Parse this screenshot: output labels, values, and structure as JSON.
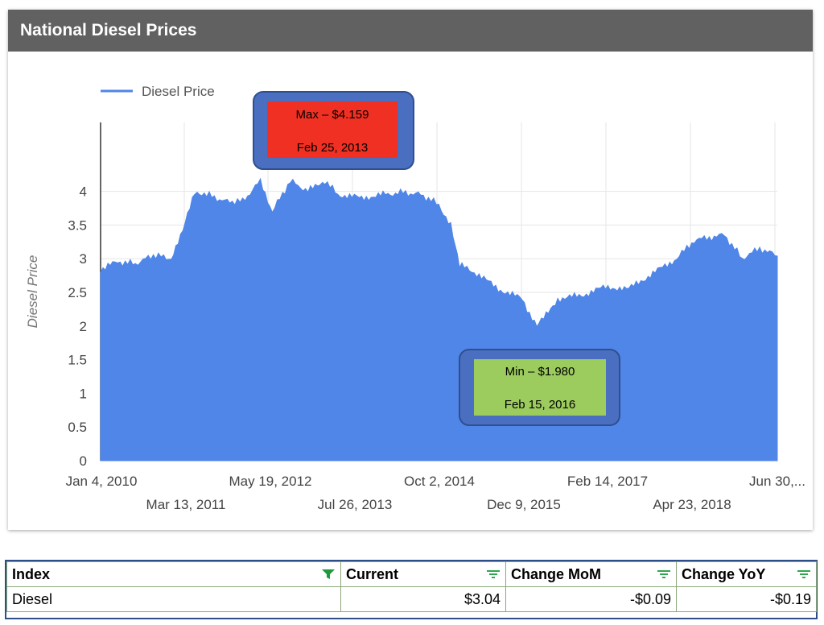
{
  "card": {
    "title": "National Diesel Prices"
  },
  "colors": {
    "series": "#4f86e8",
    "max_box": "#f03022",
    "min_box": "#9ccb5e",
    "callout_outer": "#4a6fc0",
    "header": "#616161"
  },
  "chart_data": {
    "type": "area",
    "title": "",
    "xlabel": "",
    "ylabel": "Diesel Price",
    "ylim": [
      0,
      4.159
    ],
    "yticks": [
      "0",
      "0.5",
      "1",
      "1.5",
      "2",
      "2.5",
      "3",
      "3.5",
      "4"
    ],
    "x_ticks_row1": [
      "Jan 4, 2010",
      "May 19, 2012",
      "Oct 2, 2014",
      "Feb 14, 2017",
      "Jun 30,..."
    ],
    "x_ticks_row2": [
      "Mar 13, 2011",
      "Jul 26, 2013",
      "Dec 9, 2015",
      "Apr 23, 2018"
    ],
    "legend": {
      "position": "top-left",
      "label": "Diesel Price"
    },
    "grid": true,
    "series": [
      {
        "name": "Diesel Price",
        "x": [
          "2010-01-04",
          "2010-04-01",
          "2010-07-01",
          "2010-10-01",
          "2011-01-01",
          "2011-03-01",
          "2011-05-01",
          "2011-07-01",
          "2011-10-01",
          "2012-01-01",
          "2012-04-01",
          "2012-06-01",
          "2012-09-01",
          "2012-12-01",
          "2013-02-25",
          "2013-05-01",
          "2013-09-01",
          "2014-01-01",
          "2014-04-01",
          "2014-07-01",
          "2014-10-01",
          "2014-12-01",
          "2015-01-15",
          "2015-04-01",
          "2015-08-01",
          "2015-12-01",
          "2016-02-15",
          "2016-06-01",
          "2016-10-01",
          "2017-02-01",
          "2017-06-01",
          "2017-10-01",
          "2018-02-01",
          "2018-05-01",
          "2018-10-01",
          "2019-01-01",
          "2019-04-01",
          "2019-06-30"
        ],
        "values": [
          2.84,
          2.95,
          2.92,
          3.05,
          3.0,
          3.4,
          4.0,
          3.95,
          3.85,
          3.85,
          4.15,
          3.7,
          4.15,
          4.0,
          4.159,
          3.95,
          3.9,
          3.95,
          3.98,
          3.95,
          3.8,
          3.5,
          2.9,
          2.8,
          2.55,
          2.4,
          1.98,
          2.4,
          2.45,
          2.58,
          2.55,
          2.78,
          3.0,
          3.27,
          3.35,
          3.0,
          3.15,
          3.04
        ]
      }
    ],
    "annotations": [
      {
        "label": "Max – $4.159",
        "date": "Feb 25, 2013"
      },
      {
        "label": "Min – $1.980",
        "date": "Feb 15, 2016"
      }
    ]
  },
  "table": {
    "headers": [
      "Index",
      "Current",
      "Change MoM",
      "Change YoY"
    ],
    "rows": [
      [
        "Diesel",
        "$3.04",
        "-$0.09",
        "-$0.19"
      ]
    ]
  }
}
